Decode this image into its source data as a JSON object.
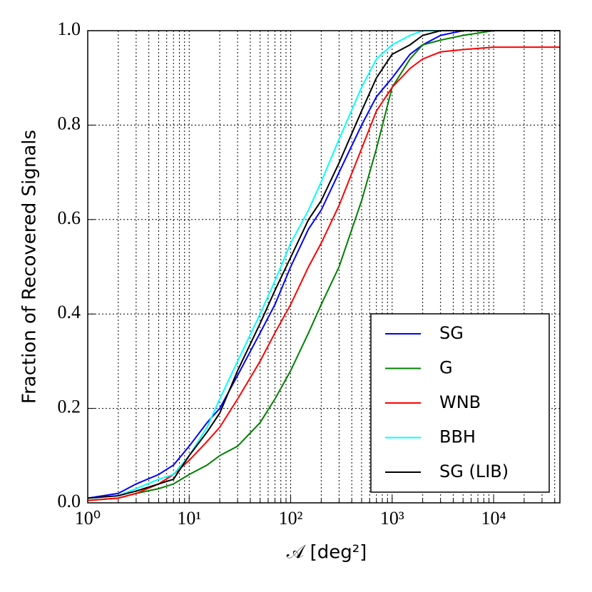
{
  "chart_data": {
    "type": "line",
    "xlabel": "𝒜 [deg²]",
    "ylabel": "Fraction of Recovered Signals",
    "log_x": true,
    "grid": true,
    "legend": "lower right",
    "xlim": [
      1,
      45000
    ],
    "ylim": [
      0,
      1
    ],
    "xticks": [
      {
        "value": 1,
        "label": "10⁰"
      },
      {
        "value": 10,
        "label": "10¹"
      },
      {
        "value": 100,
        "label": "10²"
      },
      {
        "value": 1000,
        "label": "10³"
      },
      {
        "value": 10000,
        "label": "10⁴"
      }
    ],
    "xminorticks": [
      2,
      3,
      4,
      5,
      6,
      7,
      8,
      9,
      20,
      30,
      40,
      50,
      60,
      70,
      80,
      90,
      200,
      300,
      400,
      500,
      600,
      700,
      800,
      900,
      2000,
      3000,
      4000,
      5000,
      6000,
      7000,
      8000,
      9000,
      20000,
      30000,
      40000
    ],
    "yticks": [
      {
        "value": 0,
        "label": "0.0"
      },
      0.2,
      0.4,
      0.6,
      0.8,
      {
        "value": 1,
        "label": "1.0"
      }
    ],
    "x": [
      1,
      2,
      3,
      5,
      7,
      10,
      15,
      20,
      30,
      50,
      70,
      100,
      150,
      200,
      300,
      500,
      700,
      1000,
      1500,
      2000,
      3000,
      5000,
      10000,
      45000
    ],
    "series": [
      {
        "name": "SG",
        "color": "#0000ff",
        "values": [
          0.01,
          0.02,
          0.04,
          0.06,
          0.08,
          0.12,
          0.17,
          0.2,
          0.27,
          0.36,
          0.42,
          0.5,
          0.58,
          0.62,
          0.7,
          0.8,
          0.86,
          0.9,
          0.95,
          0.97,
          0.99,
          1.0,
          1.0,
          1.0
        ]
      },
      {
        "name": "G",
        "color": "#008000",
        "values": [
          0.005,
          0.01,
          0.02,
          0.03,
          0.04,
          0.06,
          0.08,
          0.1,
          0.12,
          0.17,
          0.22,
          0.28,
          0.36,
          0.42,
          0.5,
          0.64,
          0.75,
          0.88,
          0.94,
          0.97,
          0.98,
          0.99,
          1.0,
          1.0
        ]
      },
      {
        "name": "WNB",
        "color": "#ff0000",
        "values": [
          0.005,
          0.01,
          0.02,
          0.04,
          0.06,
          0.09,
          0.13,
          0.16,
          0.22,
          0.3,
          0.36,
          0.42,
          0.5,
          0.55,
          0.63,
          0.75,
          0.83,
          0.88,
          0.92,
          0.94,
          0.955,
          0.96,
          0.965,
          0.965
        ]
      },
      {
        "name": "BBH",
        "color": "#00ffff",
        "values": [
          0.01,
          0.015,
          0.03,
          0.05,
          0.06,
          0.1,
          0.16,
          0.22,
          0.3,
          0.4,
          0.47,
          0.55,
          0.62,
          0.68,
          0.77,
          0.88,
          0.94,
          0.97,
          0.99,
          1.0,
          1.0,
          1.0,
          1.0,
          1.0
        ]
      },
      {
        "name": "SG (LIB)",
        "color": "#000000",
        "values": [
          0.01,
          0.015,
          0.025,
          0.04,
          0.05,
          0.1,
          0.15,
          0.19,
          0.28,
          0.38,
          0.45,
          0.52,
          0.6,
          0.64,
          0.72,
          0.83,
          0.9,
          0.95,
          0.97,
          0.99,
          1.0,
          1.0,
          1.0,
          1.0
        ]
      }
    ]
  }
}
